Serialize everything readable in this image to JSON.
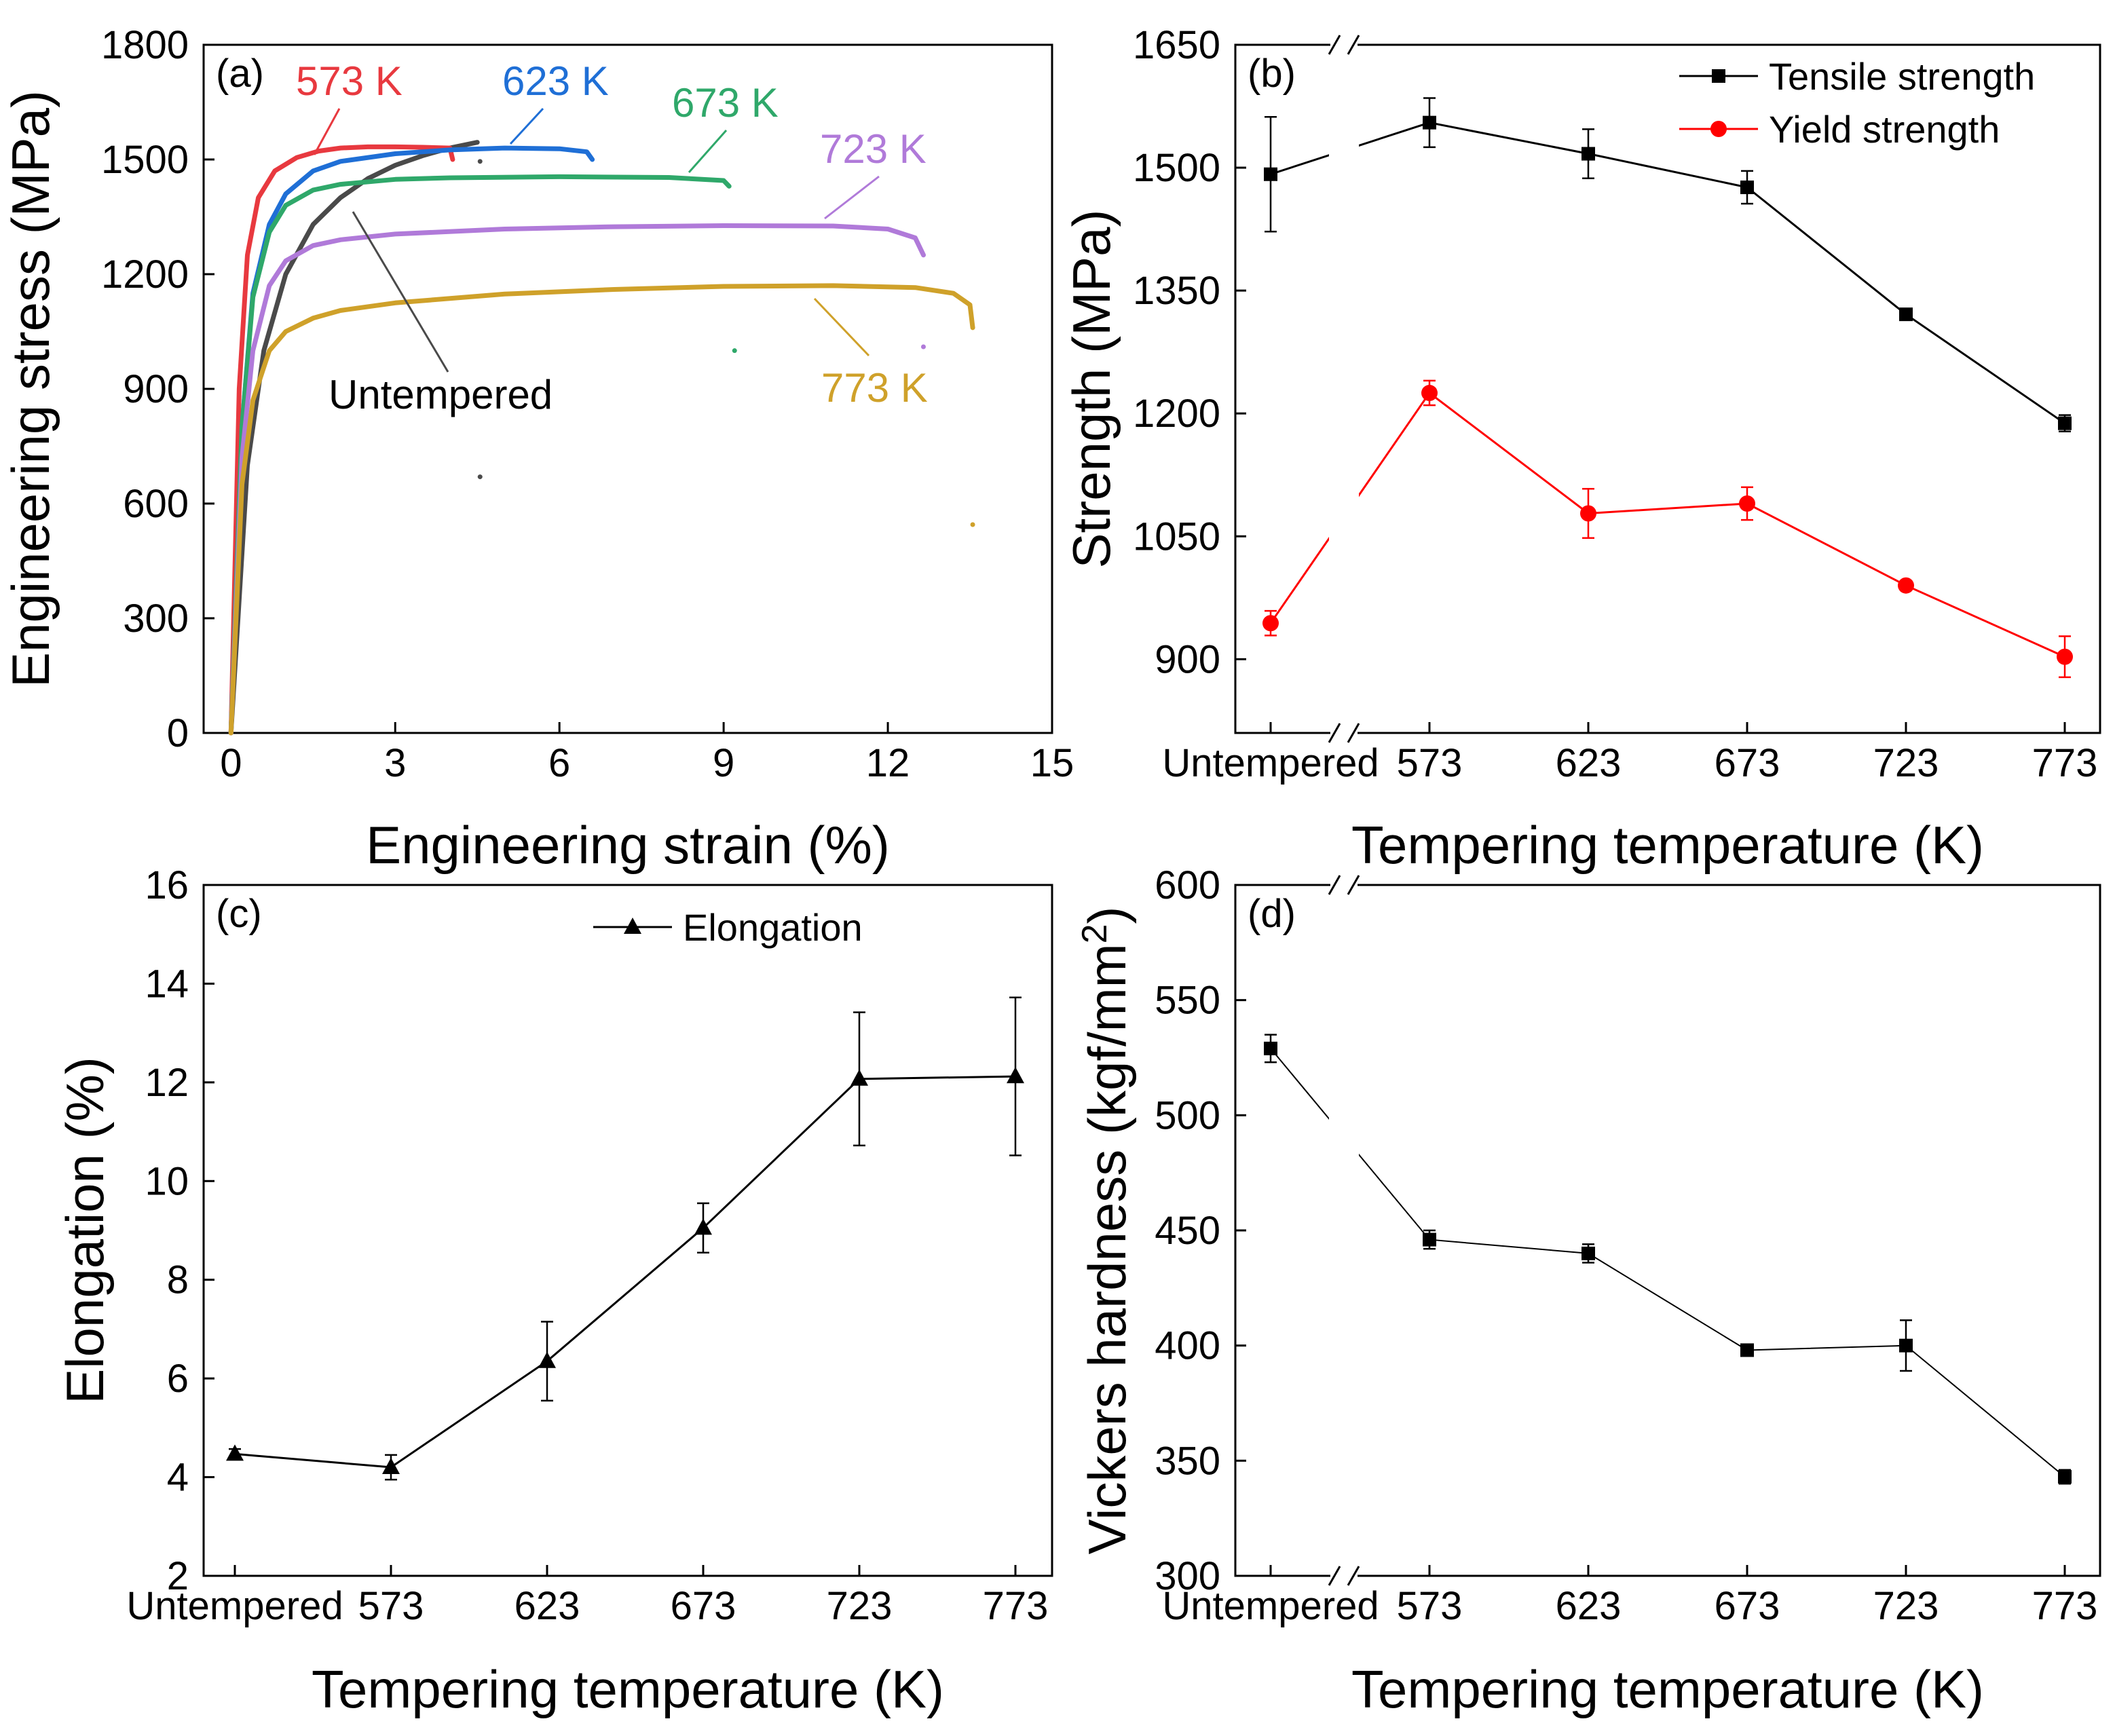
{
  "chart_data": [
    {
      "panel": "(a)",
      "type": "line",
      "xlabel": "Engineering strain (%)",
      "ylabel": "Engineering stress (MPa)",
      "xlim": [
        -0.5,
        15
      ],
      "ylim": [
        0,
        1800
      ],
      "xticks": [
        "0",
        "3",
        "6",
        "9",
        "12",
        "15"
      ],
      "yticks": [
        "0",
        "300",
        "600",
        "900",
        "1200",
        "1500",
        "1800"
      ],
      "grid": false,
      "series": [
        {
          "name": "Untempered",
          "label": "Untempered",
          "color": "#4a4a4a",
          "x": [
            0,
            0.3,
            0.6,
            1.0,
            1.5,
            2.0,
            2.5,
            3.0,
            3.5,
            4.0,
            4.5
          ],
          "y": [
            0,
            700,
            1000,
            1200,
            1330,
            1400,
            1450,
            1485,
            1510,
            1530,
            1545
          ]
        },
        {
          "name": "573 K",
          "label": "573 K",
          "color": "#e8393f",
          "x": [
            0,
            0.15,
            0.3,
            0.5,
            0.8,
            1.2,
            1.6,
            2.0,
            2.5,
            3.0,
            3.5,
            4.0,
            4.05
          ],
          "y": [
            0,
            900,
            1250,
            1400,
            1470,
            1505,
            1522,
            1530,
            1533,
            1533,
            1532,
            1530,
            1500
          ]
        },
        {
          "name": "623 K",
          "label": "623 K",
          "color": "#1f6fd6",
          "x": [
            0,
            0.2,
            0.4,
            0.7,
            1.0,
            1.5,
            2.0,
            3.0,
            4.0,
            5.0,
            6.0,
            6.5,
            6.6
          ],
          "y": [
            0,
            800,
            1150,
            1330,
            1410,
            1470,
            1495,
            1515,
            1525,
            1530,
            1528,
            1520,
            1500
          ]
        },
        {
          "name": "673 K",
          "label": "673 K",
          "color": "#2fa86a",
          "x": [
            0,
            0.2,
            0.4,
            0.7,
            1.0,
            1.5,
            2.0,
            3.0,
            4.0,
            6.0,
            8.0,
            9.0,
            9.1
          ],
          "y": [
            0,
            800,
            1140,
            1310,
            1380,
            1420,
            1435,
            1448,
            1452,
            1455,
            1453,
            1445,
            1430
          ]
        },
        {
          "name": "723 K",
          "label": "723 K",
          "color": "#b07ad9",
          "x": [
            0,
            0.2,
            0.4,
            0.7,
            1.0,
            1.5,
            2.0,
            3.0,
            5.0,
            7.0,
            9.0,
            11.0,
            12.0,
            12.5,
            12.65
          ],
          "y": [
            0,
            720,
            1000,
            1170,
            1235,
            1275,
            1290,
            1305,
            1318,
            1324,
            1327,
            1326,
            1318,
            1295,
            1250
          ]
        },
        {
          "name": "773 K",
          "label": "773 K",
          "color": "#cfa12a",
          "x": [
            0,
            0.2,
            0.4,
            0.7,
            1.0,
            1.5,
            2.0,
            3.0,
            5.0,
            7.0,
            9.0,
            11.0,
            12.5,
            13.2,
            13.5,
            13.55
          ],
          "y": [
            0,
            650,
            870,
            1000,
            1050,
            1085,
            1105,
            1125,
            1148,
            1160,
            1168,
            1170,
            1165,
            1150,
            1120,
            1060
          ]
        }
      ],
      "scatter_dots": [
        {
          "x": 4.55,
          "y": 1495,
          "color": "#4a4a4a"
        },
        {
          "x": 4.55,
          "y": 670,
          "color": "#4a4a4a"
        },
        {
          "x": 9.2,
          "y": 1000,
          "color": "#2fa86a"
        },
        {
          "x": 12.65,
          "y": 1010,
          "color": "#b07ad9"
        },
        {
          "x": 13.55,
          "y": 545,
          "color": "#cfa12a"
        }
      ]
    },
    {
      "panel": "(b)",
      "type": "line",
      "xlabel": "Tempering temperature (K)",
      "ylabel": "Strength (MPa)",
      "categories": [
        "Untempered",
        "573",
        "623",
        "673",
        "723",
        "773"
      ],
      "ylim": [
        810,
        1650
      ],
      "yticks": [
        "900",
        "1050",
        "1200",
        "1350",
        "1500",
        "1650"
      ],
      "axis_break": "x between Untempered and 573",
      "legend": "top-right",
      "series": [
        {
          "name": "Tensile strength",
          "color": "#000000",
          "marker": "square",
          "values": [
            1492,
            1555,
            1517,
            1476,
            1321,
            1188
          ],
          "errors": [
            70,
            30,
            30,
            20,
            0,
            10
          ]
        },
        {
          "name": "Yield strength",
          "color": "#ff0000",
          "marker": "circle",
          "values": [
            944,
            1225,
            1078,
            1090,
            990,
            903
          ],
          "errors": [
            15,
            15,
            30,
            20,
            0,
            25
          ]
        }
      ]
    },
    {
      "panel": "(c)",
      "type": "line",
      "xlabel": "Tempering temperature (K)",
      "ylabel": "Elongation (%)",
      "categories": [
        "Untempered",
        "573",
        "623",
        "673",
        "723",
        "773"
      ],
      "ylim": [
        2,
        16
      ],
      "yticks": [
        "2",
        "4",
        "6",
        "8",
        "10",
        "12",
        "14",
        "16"
      ],
      "legend": "top-right",
      "series": [
        {
          "name": "Elongation",
          "color": "#000000",
          "marker": "triangle",
          "values": [
            4.47,
            4.2,
            6.35,
            9.05,
            12.07,
            12.12
          ],
          "errors": [
            0.1,
            0.25,
            0.8,
            0.5,
            1.35,
            1.6
          ]
        }
      ]
    },
    {
      "panel": "(d)",
      "type": "line",
      "xlabel": "Tempering temperature (K)",
      "ylabel": "Vickers hardness (kgf/mm",
      "ylabel_sup": "2",
      "ylabel_end": ")",
      "categories": [
        "Untempered",
        "573",
        "623",
        "673",
        "723",
        "773"
      ],
      "ylim": [
        300,
        600
      ],
      "yticks": [
        "300",
        "350",
        "400",
        "450",
        "500",
        "550",
        "600"
      ],
      "axis_break": "x between Untempered and 573",
      "series": [
        {
          "name": "Vickers hardness",
          "color": "#000000",
          "marker": "square",
          "values": [
            529,
            446,
            440,
            398,
            400,
            343
          ],
          "errors": [
            6,
            4,
            4,
            2,
            11,
            3
          ]
        }
      ]
    }
  ]
}
